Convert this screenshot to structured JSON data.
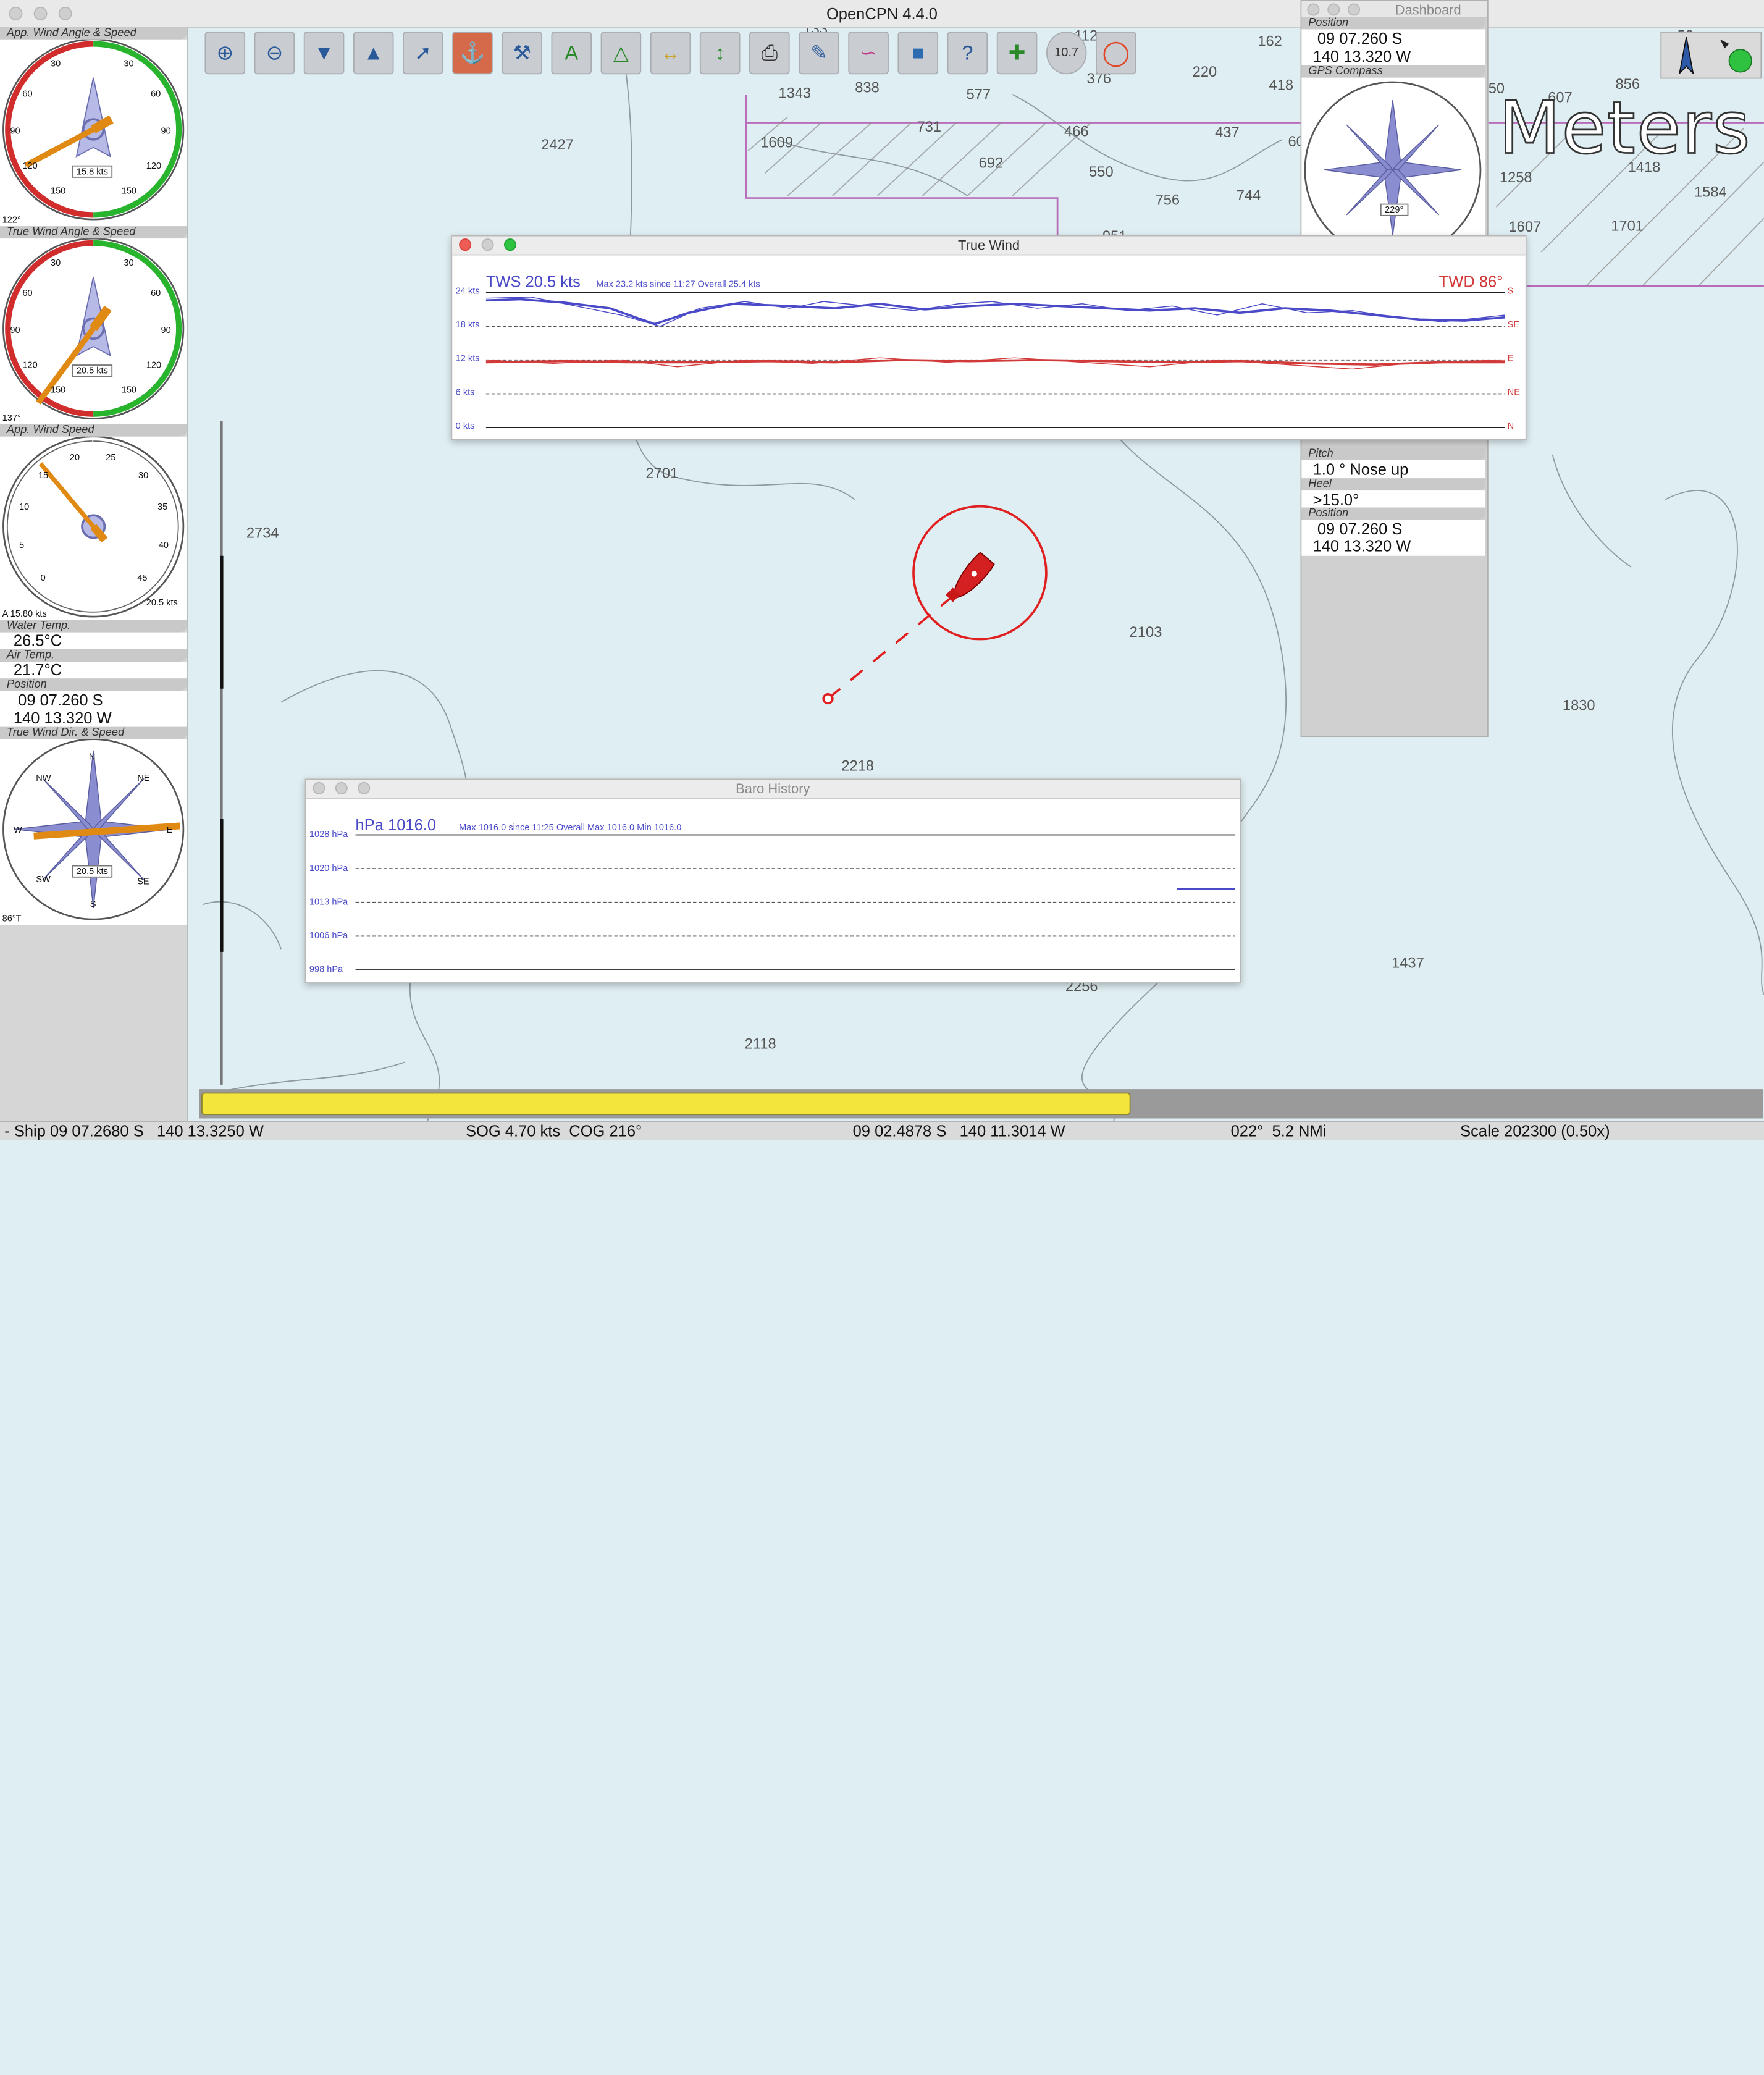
{
  "app": {
    "title": "OpenCPN 4.4.0"
  },
  "chart": {
    "depths": [
      "2427",
      "2734",
      "2701",
      "2103",
      "2218",
      "1830",
      "2118",
      "2256",
      "1437",
      "162",
      "220",
      "418",
      "1343",
      "838",
      "577",
      "731",
      "466",
      "437",
      "1609",
      "692",
      "550",
      "756",
      "744",
      "951",
      "1258",
      "1418",
      "1584",
      "1607",
      "1701",
      "856",
      "607",
      "50",
      "60",
      "112",
      "133",
      "376",
      "53"
    ],
    "meters_label": "Meters"
  },
  "left_panel": {
    "app_wind": {
      "caption": "App. Wind Angle & Speed",
      "value_box": "15.8 kts",
      "corner": "122°",
      "ticks": [
        "30",
        "30",
        "60",
        "60",
        "90",
        "90",
        "120",
        "120",
        "150",
        "150"
      ]
    },
    "true_wind": {
      "caption": "True Wind Angle & Speed",
      "value_box": "20.5 kts",
      "corner": "137°",
      "ticks": [
        "30",
        "30",
        "60",
        "60",
        "90",
        "90",
        "120",
        "120",
        "150",
        "150"
      ]
    },
    "app_wind_speed": {
      "caption": "App. Wind Speed",
      "corner_left": "A 15.80 kts",
      "corner_right": "20.5 kts",
      "ticks": [
        "0",
        "5",
        "10",
        "15",
        "20",
        "25",
        "30",
        "35",
        "40",
        "45"
      ]
    },
    "water_temp": {
      "caption": "Water Temp.",
      "value": "26.5°C"
    },
    "air_temp": {
      "caption": "Air Temp.",
      "value": "21.7°C"
    },
    "position": {
      "caption": "Position",
      "lat": "09 07.260 S",
      "lon": "140 13.320 W"
    },
    "true_wind_dir": {
      "caption": "True Wind Dir. & Speed",
      "value_box": "20.5 kts",
      "corner": "86°T",
      "cardinals": [
        "N",
        "NE",
        "E",
        "SE",
        "S",
        "SW",
        "W",
        "NW"
      ]
    }
  },
  "toolbar": {
    "buttons": [
      "zoom-in",
      "zoom-out",
      "north-up",
      "course-up",
      "route",
      "track",
      "settings",
      "text",
      "mark",
      "measure",
      "scale",
      "print",
      "log",
      "route-manager",
      "chart-quilt",
      "help",
      "plugins",
      "autopilot",
      "mob"
    ],
    "autopilot_label": "10.7"
  },
  "dashboard": {
    "title": "Dashboard",
    "position": {
      "caption": "Position",
      "lat": "09 07.260 S",
      "lon": "140 13.320 W"
    },
    "gps_compass": {
      "caption": "GPS Compass",
      "value_box": "229°"
    },
    "pitch": {
      "caption": "Pitch",
      "value": "1.0 ° Nose up"
    },
    "heel": {
      "caption": "Heel",
      "value": ">15.0°"
    },
    "position2": {
      "caption": "Position",
      "lat": "09 07.260 S",
      "lon": "140 13.320 W"
    }
  },
  "true_wind_panel": {
    "title": "True Wind",
    "tws_label": "TWS 20.5 kts",
    "stats": "Max 23.2 kts since 11:27  Overall 25.4 kts",
    "twd_label": "TWD  86°",
    "y_labels": [
      "24 kts",
      "18 kts",
      "12 kts",
      "6 kts",
      "0 kts"
    ],
    "dir_labels": [
      "S",
      "SE",
      "E",
      "NE",
      "N"
    ],
    "colors": {
      "tws": "#4a4ac8",
      "twd": "#d23a3a"
    }
  },
  "baro_panel": {
    "title": "Baro History",
    "hpa_label": "hPa 1016.0",
    "stats": "Max 1016.0 since 11:25  Overall Max 1016.0 Min 1016.0",
    "y_labels": [
      "1028 hPa",
      "1020 hPa",
      "1013 hPa",
      "1006 hPa",
      "998 hPa"
    ]
  },
  "status_bar": {
    "ship": "- Ship 09 07.2680 S   140 13.3250 W",
    "sog": "SOG 4.70 kts  COG 216°",
    "cursor": "09 02.4878 S   140 11.3014 W",
    "bearing": "022°  5.2 NMi",
    "scale": "Scale 202300 (0.50x)"
  }
}
